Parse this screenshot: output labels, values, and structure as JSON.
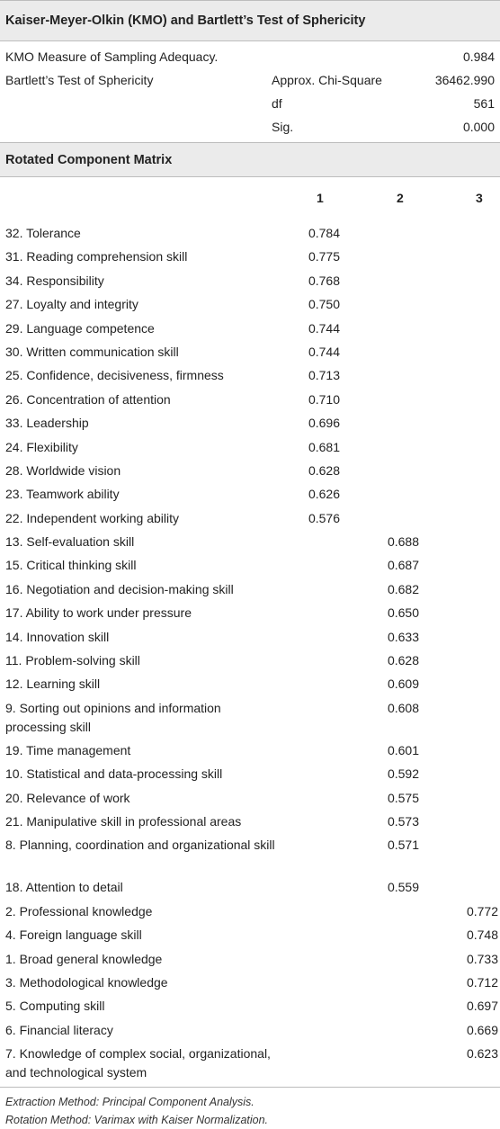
{
  "kmo": {
    "title": "Kaiser-Meyer-Olkin (KMO) and Bartlett’s Test of Sphericity",
    "rows": [
      {
        "label": "KMO Measure of Sampling Adequacy.",
        "sub": "",
        "value": "0.984"
      },
      {
        "label": "Bartlett’s Test of Sphericity",
        "sub": "Approx. Chi-Square",
        "value": "36462.990"
      },
      {
        "label": "",
        "sub": "df",
        "value": "561"
      },
      {
        "label": "",
        "sub": "Sig.",
        "value": "0.000"
      }
    ]
  },
  "matrix": {
    "title": "Rotated Component Matrix",
    "headers": [
      "1",
      "2",
      "3"
    ],
    "rows": [
      {
        "label": "32. Tolerance",
        "c1": "0.784",
        "c2": "",
        "c3": ""
      },
      {
        "label": "31. Reading comprehension skill",
        "c1": "0.775",
        "c2": "",
        "c3": ""
      },
      {
        "label": "34. Responsibility",
        "c1": "0.768",
        "c2": "",
        "c3": ""
      },
      {
        "label": "27. Loyalty and integrity",
        "c1": "0.750",
        "c2": "",
        "c3": ""
      },
      {
        "label": "29. Language competence",
        "c1": "0.744",
        "c2": "",
        "c3": ""
      },
      {
        "label": "30. Written communication skill",
        "c1": "0.744",
        "c2": "",
        "c3": ""
      },
      {
        "label": "25. Confidence, decisiveness, firmness",
        "c1": "0.713",
        "c2": "",
        "c3": ""
      },
      {
        "label": "26. Concentration of attention",
        "c1": "0.710",
        "c2": "",
        "c3": ""
      },
      {
        "label": "33. Leadership",
        "c1": "0.696",
        "c2": "",
        "c3": ""
      },
      {
        "label": "24. Flexibility",
        "c1": "0.681",
        "c2": "",
        "c3": ""
      },
      {
        "label": "28. Worldwide vision",
        "c1": "0.628",
        "c2": "",
        "c3": ""
      },
      {
        "label": "23. Teamwork ability",
        "c1": "0.626",
        "c2": "",
        "c3": ""
      },
      {
        "label": "22. Independent working ability",
        "c1": "0.576",
        "c2": "",
        "c3": ""
      },
      {
        "label": "13. Self-evaluation skill",
        "c1": "",
        "c2": "0.688",
        "c3": ""
      },
      {
        "label": "15. Critical thinking skill",
        "c1": "",
        "c2": "0.687",
        "c3": ""
      },
      {
        "label": "16. Negotiation and decision-making skill",
        "c1": "",
        "c2": "0.682",
        "c3": ""
      },
      {
        "label": "17. Ability to work under pressure",
        "c1": "",
        "c2": "0.650",
        "c3": ""
      },
      {
        "label": "14. Innovation skill",
        "c1": "",
        "c2": "0.633",
        "c3": ""
      },
      {
        "label": "11. Problem-solving skill",
        "c1": "",
        "c2": "0.628",
        "c3": ""
      },
      {
        "label": "12. Learning skill",
        "c1": "",
        "c2": "0.609",
        "c3": ""
      },
      {
        "label": "9. Sorting out opinions and information processing skill",
        "c1": "",
        "c2": "0.608",
        "c3": "",
        "tall": true
      },
      {
        "label": "19. Time management",
        "c1": "",
        "c2": "0.601",
        "c3": ""
      },
      {
        "label": "10. Statistical and data-processing skill",
        "c1": "",
        "c2": "0.592",
        "c3": ""
      },
      {
        "label": "20. Relevance of work",
        "c1": "",
        "c2": "0.575",
        "c3": ""
      },
      {
        "label": "21. Manipulative skill in professional areas",
        "c1": "",
        "c2": "0.573",
        "c3": ""
      },
      {
        "label": "8. Planning, coordination and organizational skill",
        "c1": "",
        "c2": "0.571",
        "c3": "",
        "tall": true
      },
      {
        "label": "18. Attention to detail",
        "c1": "",
        "c2": "0.559",
        "c3": ""
      },
      {
        "label": "2. Professional knowledge",
        "c1": "",
        "c2": "",
        "c3": "0.772"
      },
      {
        "label": "4. Foreign language skill",
        "c1": "",
        "c2": "",
        "c3": "0.748"
      },
      {
        "label": "1. Broad general knowledge",
        "c1": "",
        "c2": "",
        "c3": "0.733"
      },
      {
        "label": "3. Methodological knowledge",
        "c1": "",
        "c2": "",
        "c3": "0.712"
      },
      {
        "label": "5. Computing skill",
        "c1": "",
        "c2": "",
        "c3": "0.697"
      },
      {
        "label": "6. Financial literacy",
        "c1": "",
        "c2": "",
        "c3": "0.669"
      },
      {
        "label": "7. Knowledge of complex social, organizational, and technological system",
        "c1": "",
        "c2": "",
        "c3": "0.623",
        "tall": true
      }
    ]
  },
  "notes": [
    "Extraction Method: Principal Component Analysis.",
    "Rotation Method: Varimax with Kaiser Normalization."
  ]
}
